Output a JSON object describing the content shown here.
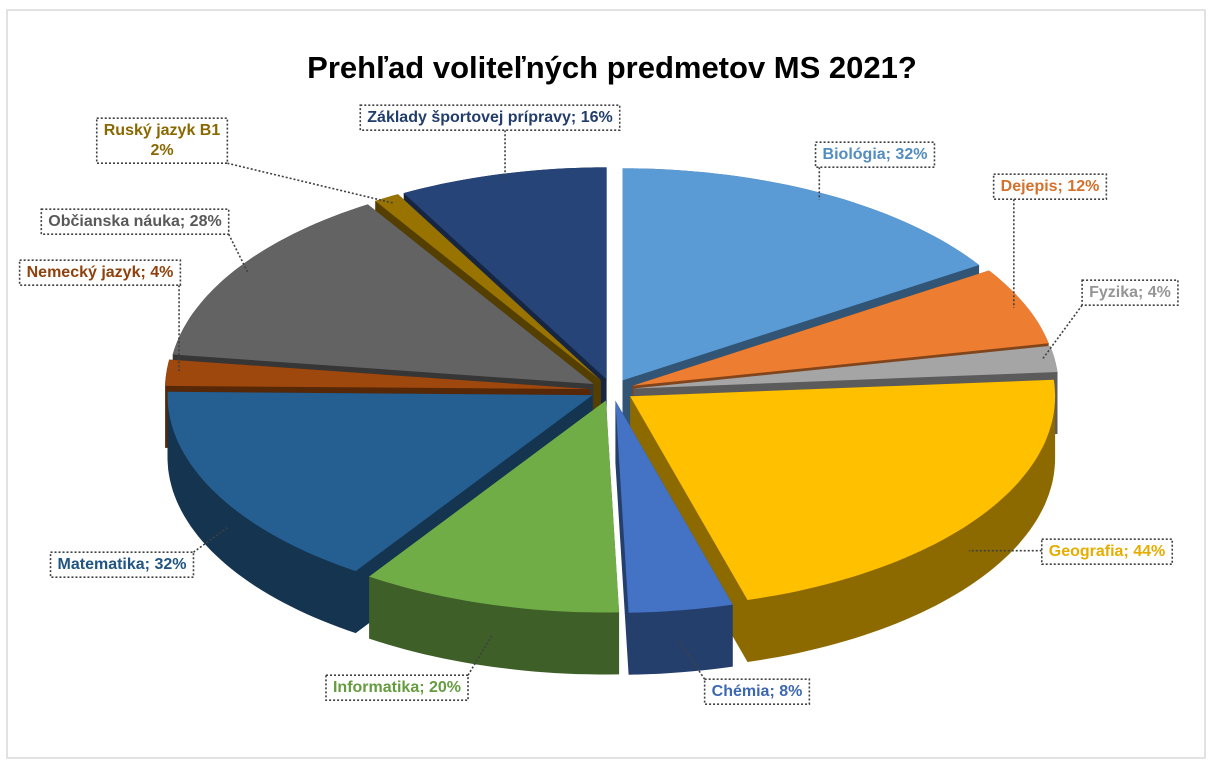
{
  "chart_data": {
    "type": "pie3d",
    "title": "Prehľad voliteľných predmetov MS 2021?",
    "values": [
      32,
      12,
      4,
      44,
      8,
      20,
      32,
      4,
      28,
      2,
      16
    ],
    "value_labels": [
      [
        "Biológia; 32%"
      ],
      [
        "Dejepis; 12%"
      ],
      [
        "Fyzika; 4%"
      ],
      [
        "Geografia; 44%"
      ],
      [
        "Chémia; 8%"
      ],
      [
        "Informatika; 20%"
      ],
      [
        "Matematika; 32%"
      ],
      [
        "Nemecký jazyk; 4%"
      ],
      [
        "Občianska náuka; 28%"
      ],
      [
        "Ruský jazyk B1",
        "2%"
      ],
      [
        "Základy športovej prípravy; 16%"
      ]
    ],
    "colors": [
      "#5b9bd5",
      "#ed7d31",
      "#a5a5a5",
      "#ffc000",
      "#4472c4",
      "#70ad47",
      "#255e91",
      "#9e480e",
      "#636363",
      "#997300",
      "#264478"
    ]
  }
}
